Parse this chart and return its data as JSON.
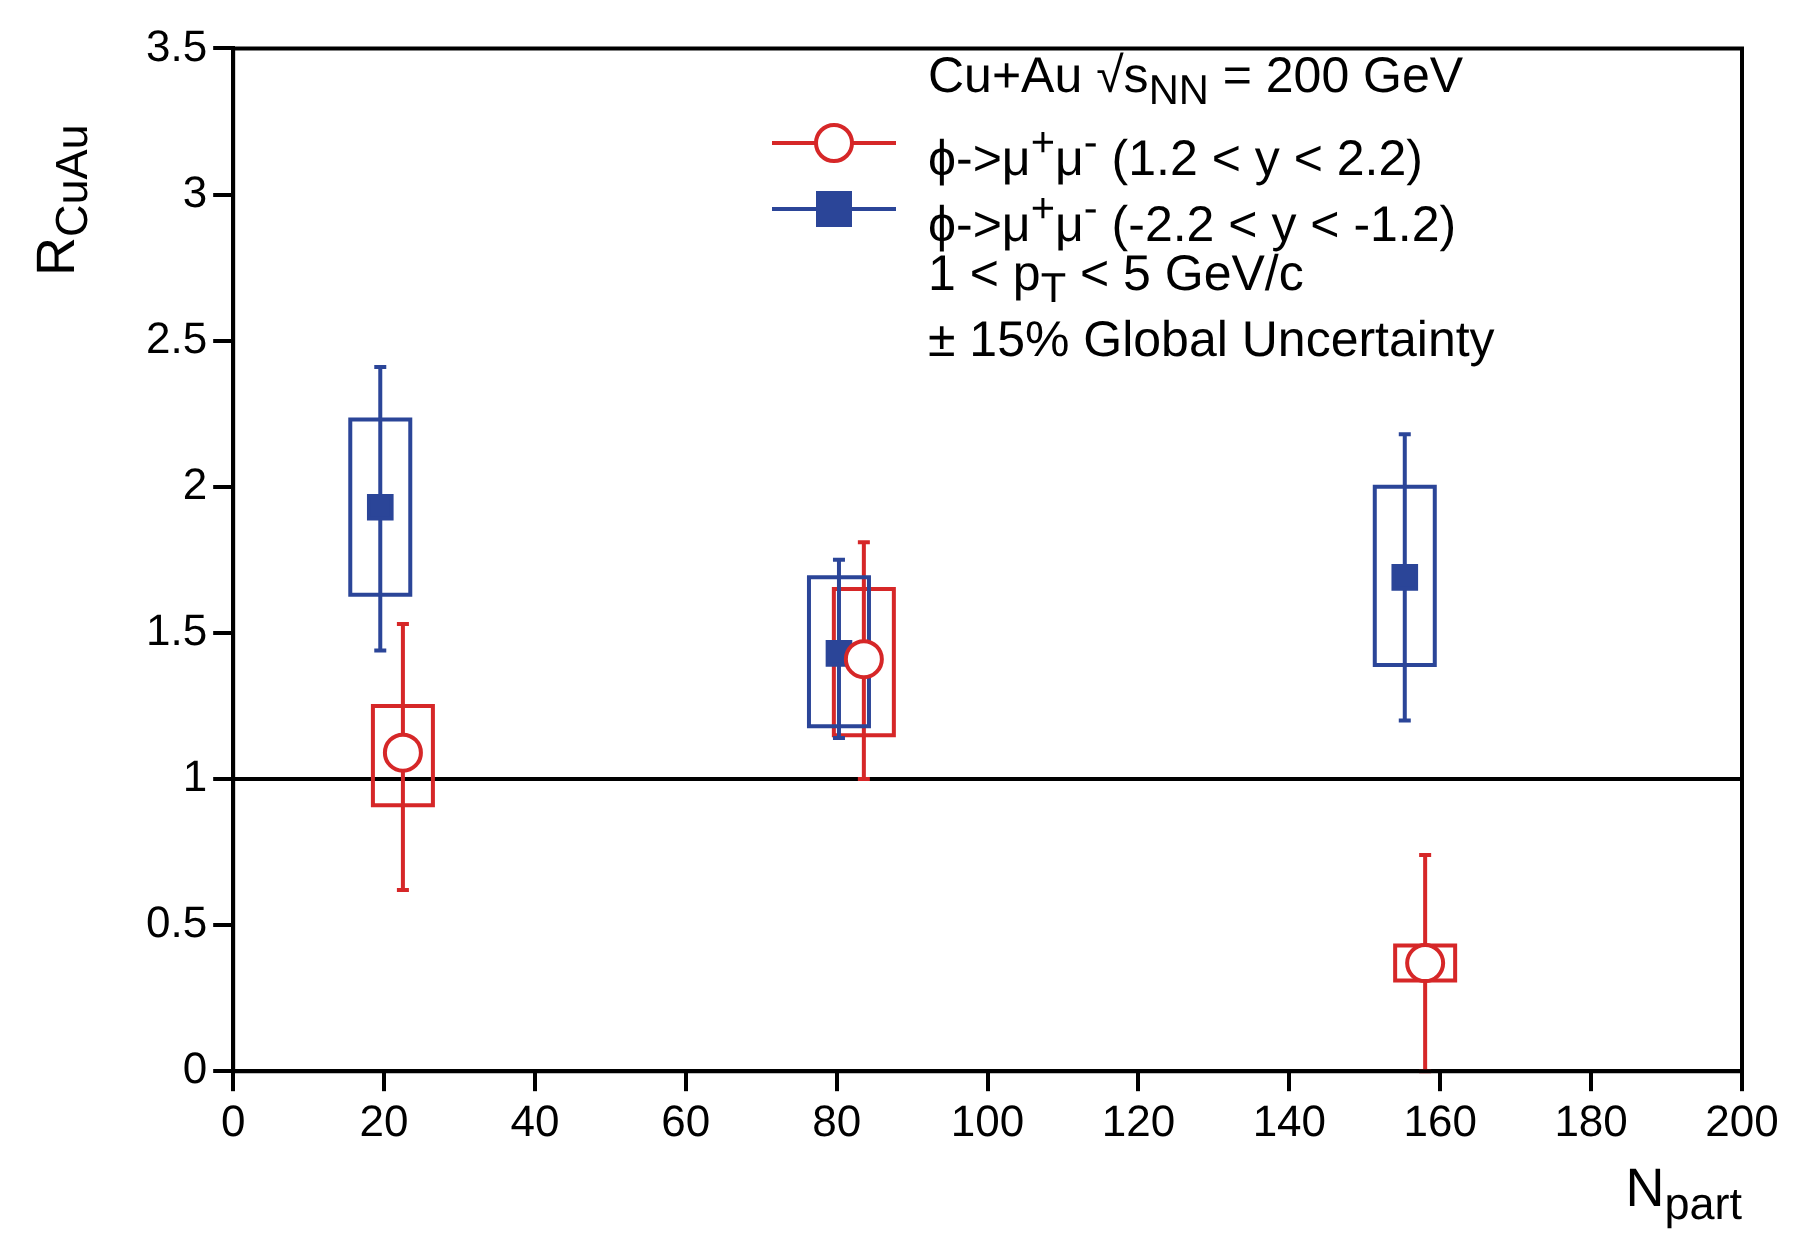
{
  "chart_data": {
    "type": "box",
    "xlabel": "N$_{part}$",
    "ylabel": "R$_{CuAu}$",
    "legend_title": "Cu+Au √s$_{NN}$ = 200 GeV",
    "annotations": [
      "1 < p$_{T}$ < 5 GeV/c",
      "± 15% Global Uncertainty"
    ],
    "legend": "top right",
    "grid": false,
    "xlim": [
      0,
      200
    ],
    "xticks": [
      0,
      20,
      40,
      60,
      80,
      100,
      120,
      140,
      160,
      180,
      200
    ],
    "ylim": [
      0,
      3.5
    ],
    "yticks": [
      0,
      0.5,
      1,
      1.5,
      2,
      2.5,
      3,
      3.5
    ],
    "ref_lines": [
      {
        "axis": "y",
        "value": 1,
        "color": "#000000"
      }
    ],
    "series": [
      {
        "name": "ϕ->μ$^{+}$μ$^{-}$ (1.2 < y < 2.2)",
        "type": "box",
        "color": "#d62728",
        "marker": "circle",
        "x": [
          22.5,
          83.6,
          158
        ],
        "boxes": [
          {
            "low": 0.62,
            "q1": 0.91,
            "median": 1.09,
            "q3": 1.25,
            "high": 1.53
          },
          {
            "low": 1.0,
            "q1": 1.15,
            "median": 1.41,
            "q3": 1.65,
            "high": 1.81
          },
          {
            "low": 0,
            "q1": 0.31,
            "median": 0.37,
            "q3": 0.43,
            "high": 0.74
          }
        ]
      },
      {
        "name": "ϕ->μ$^{+}$μ$^{-}$ (-2.2 < y < -1.2)",
        "type": "box",
        "color": "#2b4598",
        "marker": "square",
        "x": [
          19.5,
          80.3,
          155.3
        ],
        "boxes": [
          {
            "low": 1.44,
            "q1": 1.63,
            "median": 1.93,
            "q3": 2.23,
            "high": 2.41
          },
          {
            "low": 1.14,
            "q1": 1.18,
            "median": 1.43,
            "q3": 1.69,
            "high": 1.75
          },
          {
            "low": 1.2,
            "q1": 1.39,
            "median": 1.69,
            "q3": 2.0,
            "high": 2.18
          }
        ]
      }
    ]
  }
}
